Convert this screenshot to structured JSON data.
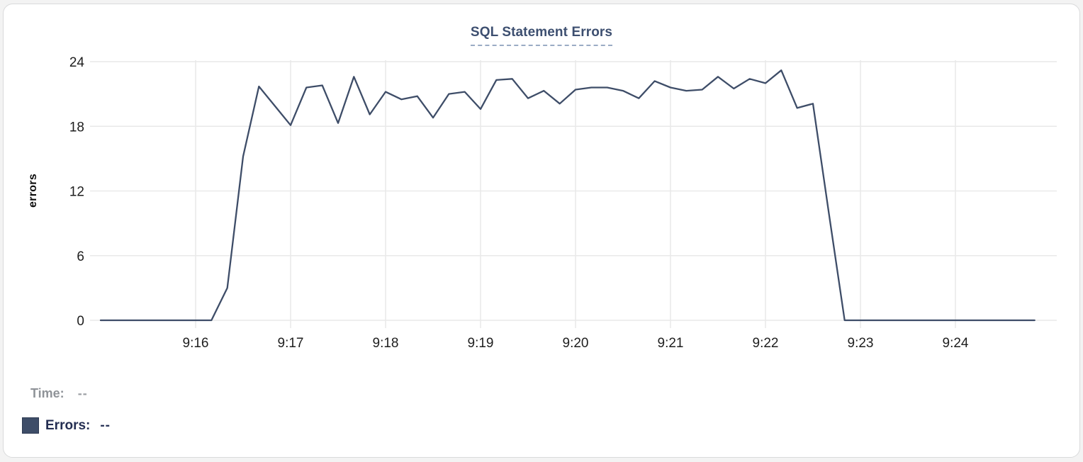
{
  "title": "SQL Statement Errors",
  "colors": {
    "line": "#3E4D68",
    "swatch": "#3E4D68",
    "title": "#3D4F70",
    "title_underline": "#9AABC4",
    "grid": "#E9E9E9",
    "axis_text": "#1E1E1E",
    "time_label": "#8F9398",
    "time_value": "#9C9FA4",
    "errors_label": "#242E52",
    "errors_value": "#2A3458",
    "card_background": "#FFFFFF",
    "card_border": "#D9DADB"
  },
  "tooltip": {
    "time_label": "Time:",
    "time_value": "--",
    "errors_label": "Errors:",
    "errors_value": "--"
  },
  "chart_data": {
    "type": "line",
    "title": "SQL Statement Errors",
    "xlabel": "",
    "ylabel": "errors",
    "ylim": [
      0,
      24
    ],
    "yticks": [
      0,
      6,
      12,
      18,
      24
    ],
    "xticks": [
      "9:16",
      "9:17",
      "9:18",
      "9:19",
      "9:20",
      "9:21",
      "9:22",
      "9:23",
      "9:24"
    ],
    "x_range": [
      "9:15:00",
      "9:25:00"
    ],
    "grid": true,
    "legend_position": "bottom-left",
    "series": [
      {
        "name": "Errors",
        "color": "#3E4D68",
        "points": [
          [
            "9:15:00",
            0
          ],
          [
            "9:15:10",
            0
          ],
          [
            "9:15:20",
            0
          ],
          [
            "9:15:30",
            0
          ],
          [
            "9:15:40",
            0
          ],
          [
            "9:15:50",
            0
          ],
          [
            "9:16:00",
            0
          ],
          [
            "9:16:10",
            0
          ],
          [
            "9:16:20",
            3
          ],
          [
            "9:16:30",
            15.2
          ],
          [
            "9:16:40",
            21.7
          ],
          [
            "9:16:50",
            19.9
          ],
          [
            "9:17:00",
            18.1
          ],
          [
            "9:17:10",
            21.6
          ],
          [
            "9:17:20",
            21.8
          ],
          [
            "9:17:30",
            18.3
          ],
          [
            "9:17:40",
            22.6
          ],
          [
            "9:17:50",
            19.1
          ],
          [
            "9:18:00",
            21.2
          ],
          [
            "9:18:10",
            20.5
          ],
          [
            "9:18:20",
            20.8
          ],
          [
            "9:18:30",
            18.8
          ],
          [
            "9:18:40",
            21.0
          ],
          [
            "9:18:50",
            21.2
          ],
          [
            "9:19:00",
            19.6
          ],
          [
            "9:19:10",
            22.3
          ],
          [
            "9:19:20",
            22.4
          ],
          [
            "9:19:30",
            20.6
          ],
          [
            "9:19:40",
            21.3
          ],
          [
            "9:19:50",
            20.1
          ],
          [
            "9:20:00",
            21.4
          ],
          [
            "9:20:10",
            21.6
          ],
          [
            "9:20:20",
            21.6
          ],
          [
            "9:20:30",
            21.3
          ],
          [
            "9:20:40",
            20.6
          ],
          [
            "9:20:50",
            22.2
          ],
          [
            "9:21:00",
            21.6
          ],
          [
            "9:21:10",
            21.3
          ],
          [
            "9:21:20",
            21.4
          ],
          [
            "9:21:30",
            22.6
          ],
          [
            "9:21:40",
            21.5
          ],
          [
            "9:21:50",
            22.4
          ],
          [
            "9:22:00",
            22.0
          ],
          [
            "9:22:10",
            23.2
          ],
          [
            "9:22:20",
            19.7
          ],
          [
            "9:22:30",
            20.1
          ],
          [
            "9:22:40",
            10
          ],
          [
            "9:22:50",
            0
          ],
          [
            "9:23:00",
            0
          ],
          [
            "9:23:10",
            0
          ],
          [
            "9:23:20",
            0
          ],
          [
            "9:23:30",
            0
          ],
          [
            "9:23:40",
            0
          ],
          [
            "9:23:50",
            0
          ],
          [
            "9:24:00",
            0
          ],
          [
            "9:24:10",
            0
          ],
          [
            "9:24:20",
            0
          ],
          [
            "9:24:30",
            0
          ],
          [
            "9:24:40",
            0
          ],
          [
            "9:24:50",
            0
          ]
        ]
      }
    ]
  }
}
